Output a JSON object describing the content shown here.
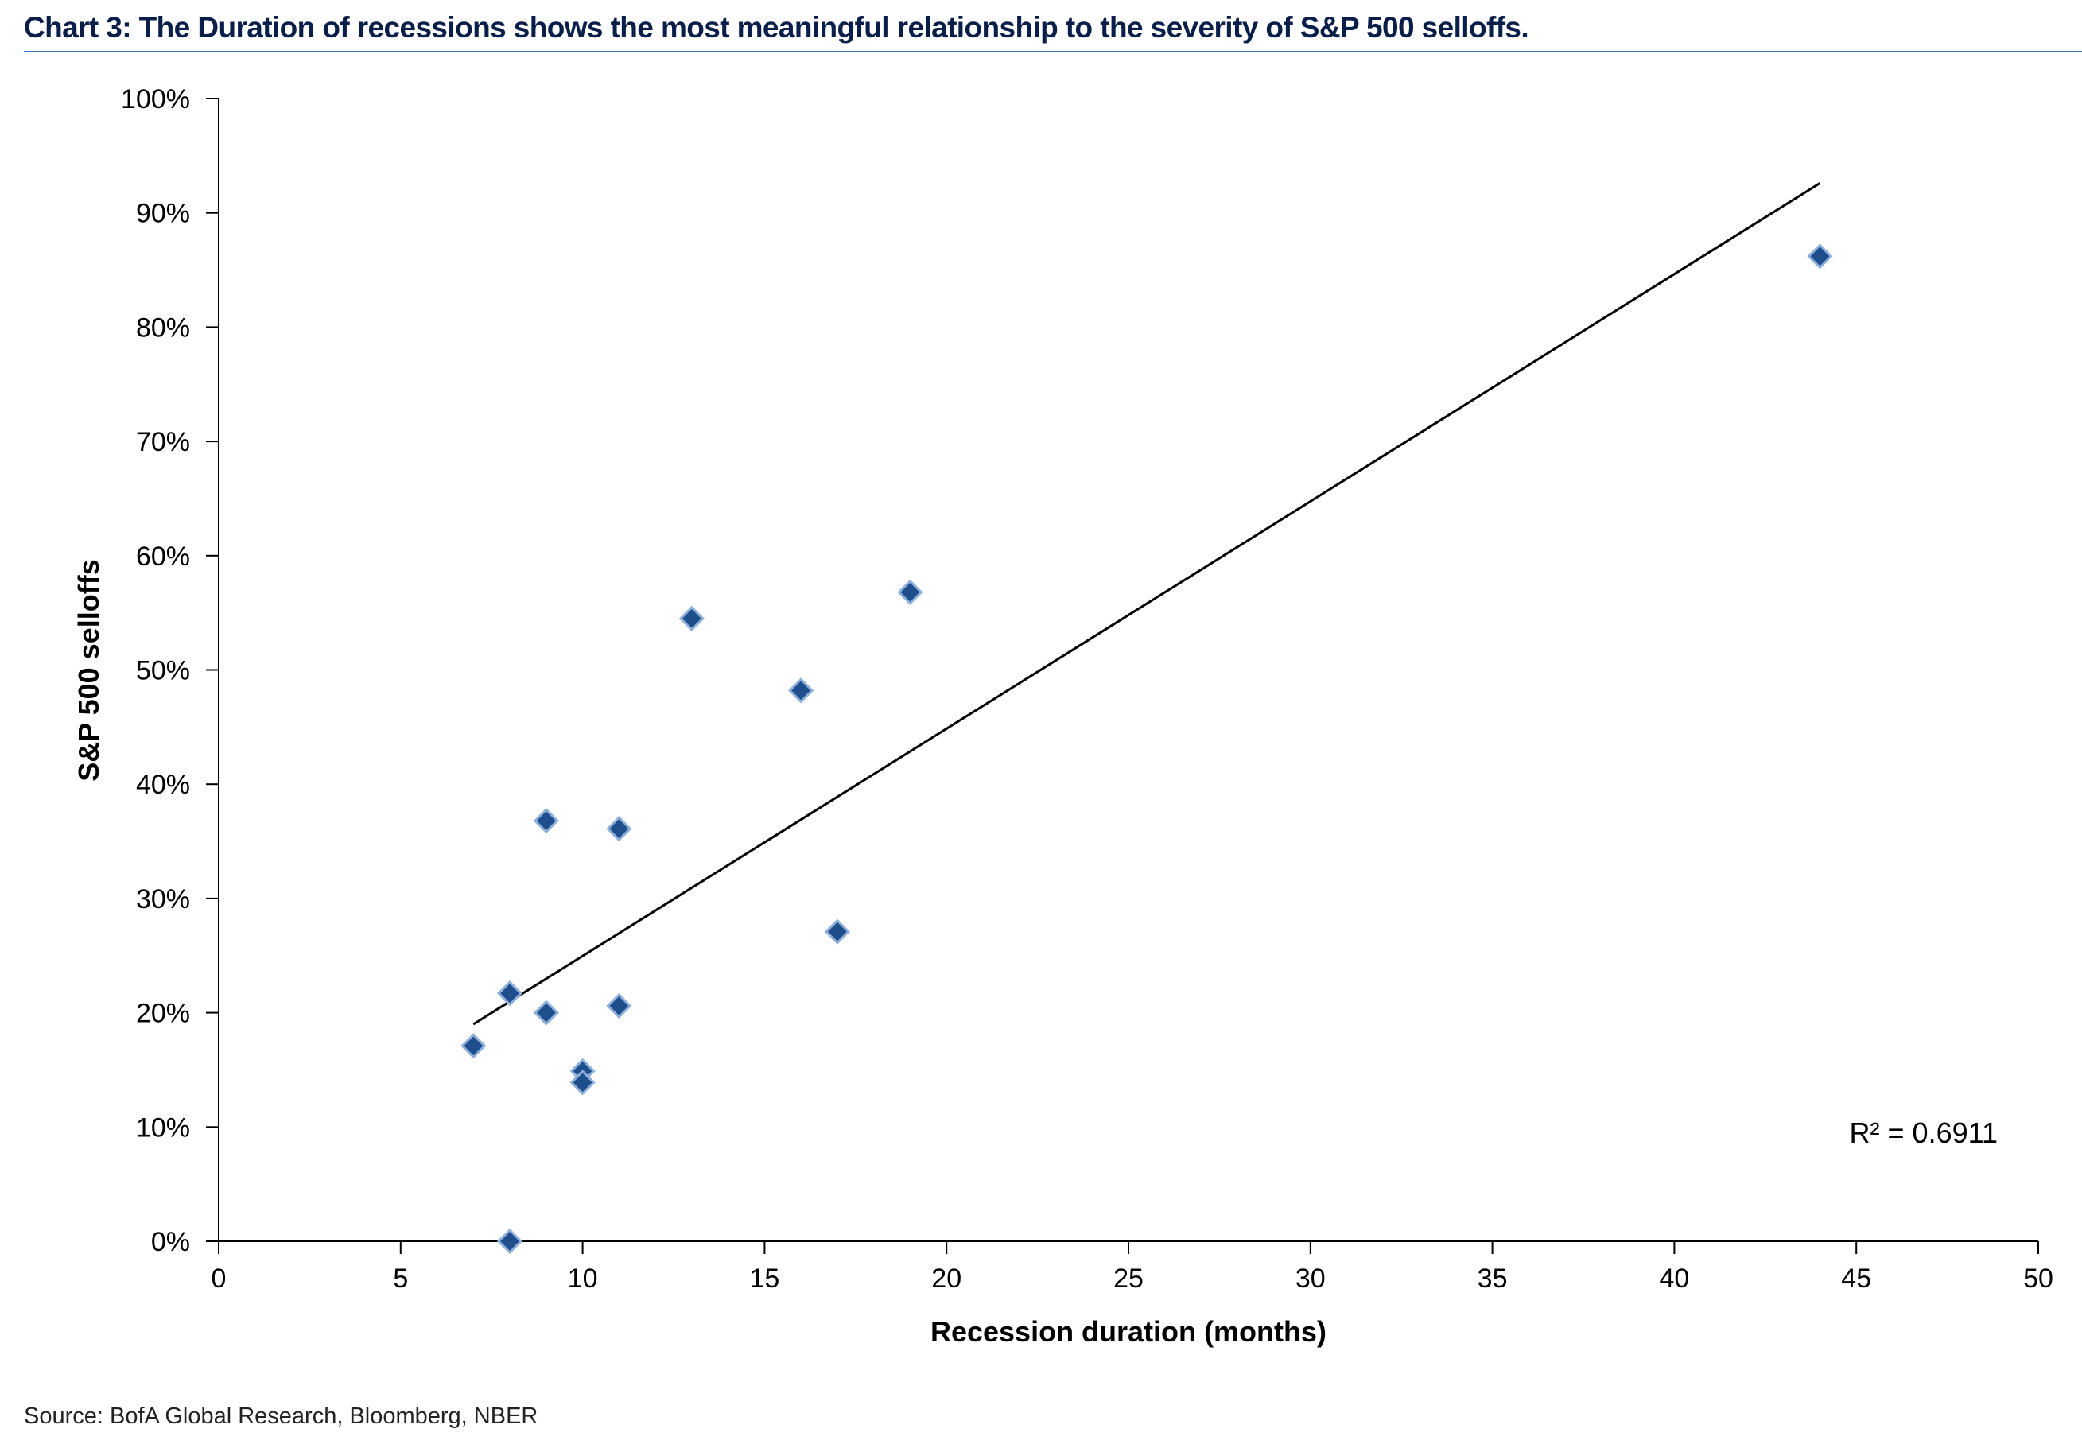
{
  "title": "Chart 3: The Duration of recessions shows the most meaningful relationship to the severity of S&P 500 selloffs.",
  "source": "Source: BofA Global Research, Bloomberg, NBER",
  "colors": {
    "title": "#0a1e4a",
    "rule": "#3d6fb6",
    "marker_fill": "#1f4e8c",
    "marker_stroke": "#8fb0da",
    "trendline": "#000000"
  },
  "chart_data": {
    "type": "scatter",
    "xlabel": "Recession duration (months)",
    "ylabel": "S&P 500 selloffs",
    "xlim": [
      0,
      50
    ],
    "ylim": [
      0,
      1
    ],
    "x_ticks": [
      0,
      5,
      10,
      15,
      20,
      25,
      30,
      35,
      40,
      45,
      50
    ],
    "y_ticks": [
      0,
      0.1,
      0.2,
      0.3,
      0.4,
      0.5,
      0.6,
      0.7,
      0.8,
      0.9,
      1.0
    ],
    "x_tick_labels": [
      "0",
      "5",
      "10",
      "15",
      "20",
      "25",
      "30",
      "35",
      "40",
      "45",
      "50"
    ],
    "y_tick_labels": [
      "0%",
      "10%",
      "20%",
      "30%",
      "40%",
      "50%",
      "60%",
      "70%",
      "80%",
      "90%",
      "100%"
    ],
    "grid": false,
    "legend": "none",
    "marker": "diamond",
    "points": [
      {
        "x": 7,
        "y": 0.171
      },
      {
        "x": 8,
        "y": 0.217
      },
      {
        "x": 8,
        "y": 0.0
      },
      {
        "x": 9,
        "y": 0.368
      },
      {
        "x": 9,
        "y": 0.2
      },
      {
        "x": 10,
        "y": 0.149
      },
      {
        "x": 10,
        "y": 0.139
      },
      {
        "x": 11,
        "y": 0.361
      },
      {
        "x": 11,
        "y": 0.206
      },
      {
        "x": 13,
        "y": 0.545
      },
      {
        "x": 16,
        "y": 0.482
      },
      {
        "x": 17,
        "y": 0.271
      },
      {
        "x": 19,
        "y": 0.568
      },
      {
        "x": 44,
        "y": 0.862
      }
    ],
    "trendline": {
      "x1": 7,
      "y1": 0.19,
      "x2": 44,
      "y2": 0.926
    },
    "annotation": "R² = 0.6911"
  }
}
